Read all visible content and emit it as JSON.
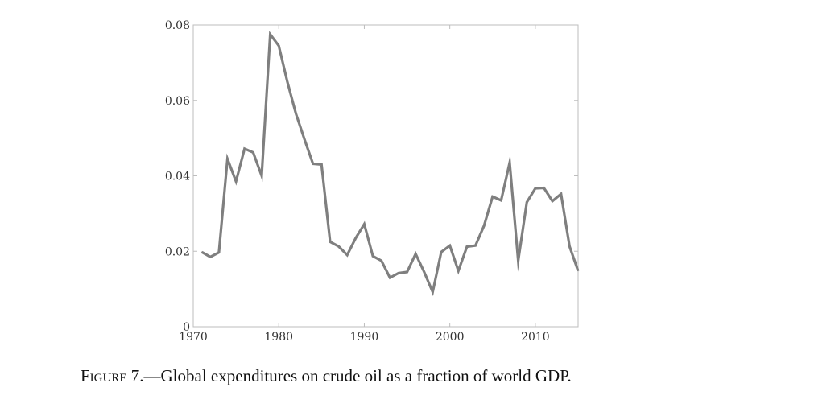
{
  "caption": {
    "label": "Figure 7.",
    "text": "—Global expenditures on crude oil as a fraction of world GDP."
  },
  "chart_data": {
    "type": "line",
    "title": "",
    "xlabel": "",
    "ylabel": "",
    "xlim": [
      1970,
      2015
    ],
    "ylim": [
      0,
      0.08
    ],
    "grid": false,
    "legend": "none",
    "line_color": "#7f7f7f",
    "x_ticks": [
      1970,
      1980,
      1990,
      2000,
      2010
    ],
    "x_tick_labels": [
      "1970",
      "1980",
      "1990",
      "2000",
      "2010"
    ],
    "y_ticks": [
      0,
      0.02,
      0.04,
      0.06,
      0.08
    ],
    "y_tick_labels": [
      "0",
      "0.02",
      "0.04",
      "0.06",
      "0.08"
    ],
    "series": [
      {
        "x": [
          1971,
          1972,
          1973,
          1974,
          1975,
          1976,
          1977,
          1978,
          1979,
          1980,
          1981,
          1982,
          1983,
          1984,
          1985,
          1986,
          1987,
          1988,
          1989,
          1990,
          1991,
          1992,
          1993,
          1994,
          1995,
          1996,
          1997,
          1998,
          1999,
          2000,
          2001,
          2002,
          2003,
          2004,
          2005,
          2006,
          2007,
          2008,
          2009,
          2010,
          2011,
          2012,
          2013,
          2014,
          2015
        ],
        "values": [
          0.0198,
          0.0185,
          0.0197,
          0.0445,
          0.0385,
          0.0472,
          0.0462,
          0.04,
          0.0775,
          0.0745,
          0.065,
          0.0565,
          0.0497,
          0.0432,
          0.043,
          0.0225,
          0.0213,
          0.019,
          0.0235,
          0.0272,
          0.0187,
          0.0175,
          0.013,
          0.0142,
          0.0145,
          0.0193,
          0.0145,
          0.0092,
          0.0198,
          0.0215,
          0.0148,
          0.0212,
          0.0215,
          0.0268,
          0.0345,
          0.0335,
          0.0435,
          0.0175,
          0.033,
          0.0367,
          0.0368,
          0.0333,
          0.0352,
          0.0213,
          0.0148
        ]
      }
    ]
  }
}
